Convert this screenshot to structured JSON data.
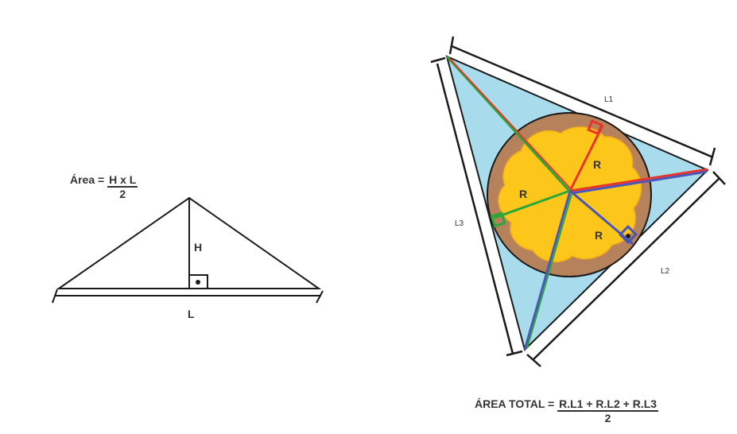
{
  "left_figure": {
    "formula_prefix": "Área =",
    "numerator": "H x L",
    "denominator": "2",
    "height_label": "H",
    "base_label": "L"
  },
  "right_figure": {
    "side_labels": {
      "l1": "L1",
      "l2": "L2",
      "l3": "L3"
    },
    "radius_label": "R",
    "formula_prefix": "ÁREA TOTAL =",
    "numerator": "R.L1 + R.L2 + R.L3",
    "denominator": "2"
  },
  "colors": {
    "triangle_fill": "#a8dced",
    "disc_brown": "#b5825b",
    "disc_yellow": "#fdc61a",
    "red": "#e8342a",
    "green": "#2aa63a",
    "blue": "#4a56b8",
    "outline": "#1a1a1a"
  }
}
